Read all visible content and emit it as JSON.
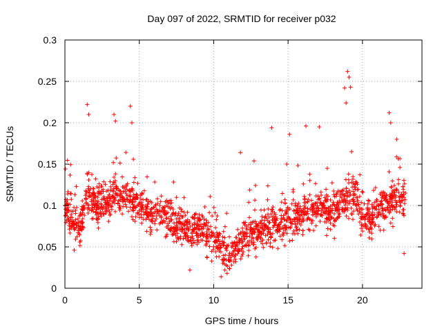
{
  "chart_data": {
    "type": "scatter",
    "title": "Day 097 of 2022, SRMTID for receiver p032",
    "xlabel": "GPS time / hours",
    "ylabel": "SRMTID / TECUs",
    "xlim": [
      0,
      24
    ],
    "ylim": [
      0,
      0.3
    ],
    "xticks": [
      0,
      5,
      10,
      15,
      20
    ],
    "xtick_labels": [
      "0",
      "5",
      "10",
      "15",
      "20"
    ],
    "yticks": [
      0,
      0.05,
      0.1,
      0.15,
      0.2,
      0.25,
      0.3
    ],
    "ytick_labels": [
      "0",
      "0.05",
      "0.1",
      "0.15",
      "0.2",
      "0.25",
      "0.3"
    ],
    "grid": true,
    "marker": "+",
    "color": "#ff0000",
    "x_range_of_data": [
      0,
      22.9
    ],
    "trend": [
      {
        "x": 0.0,
        "y": 0.1
      },
      {
        "x": 0.5,
        "y": 0.08
      },
      {
        "x": 1.0,
        "y": 0.07
      },
      {
        "x": 1.5,
        "y": 0.11
      },
      {
        "x": 2.0,
        "y": 0.105
      },
      {
        "x": 2.5,
        "y": 0.1
      },
      {
        "x": 3.0,
        "y": 0.105
      },
      {
        "x": 3.5,
        "y": 0.115
      },
      {
        "x": 4.0,
        "y": 0.11
      },
      {
        "x": 4.5,
        "y": 0.105
      },
      {
        "x": 5.0,
        "y": 0.1
      },
      {
        "x": 5.5,
        "y": 0.095
      },
      {
        "x": 6.0,
        "y": 0.09
      },
      {
        "x": 6.5,
        "y": 0.09
      },
      {
        "x": 7.0,
        "y": 0.085
      },
      {
        "x": 7.5,
        "y": 0.075
      },
      {
        "x": 8.0,
        "y": 0.075
      },
      {
        "x": 8.5,
        "y": 0.07
      },
      {
        "x": 9.0,
        "y": 0.075
      },
      {
        "x": 9.5,
        "y": 0.065
      },
      {
        "x": 10.0,
        "y": 0.06
      },
      {
        "x": 10.5,
        "y": 0.048
      },
      {
        "x": 11.0,
        "y": 0.042
      },
      {
        "x": 11.5,
        "y": 0.048
      },
      {
        "x": 12.0,
        "y": 0.06
      },
      {
        "x": 12.5,
        "y": 0.07
      },
      {
        "x": 13.0,
        "y": 0.065
      },
      {
        "x": 13.5,
        "y": 0.072
      },
      {
        "x": 14.0,
        "y": 0.075
      },
      {
        "x": 14.5,
        "y": 0.078
      },
      {
        "x": 15.0,
        "y": 0.08
      },
      {
        "x": 15.5,
        "y": 0.085
      },
      {
        "x": 16.0,
        "y": 0.09
      },
      {
        "x": 16.5,
        "y": 0.09
      },
      {
        "x": 17.0,
        "y": 0.095
      },
      {
        "x": 17.5,
        "y": 0.095
      },
      {
        "x": 18.0,
        "y": 0.09
      },
      {
        "x": 18.5,
        "y": 0.1
      },
      {
        "x": 19.0,
        "y": 0.115
      },
      {
        "x": 19.5,
        "y": 0.11
      },
      {
        "x": 20.0,
        "y": 0.085
      },
      {
        "x": 20.5,
        "y": 0.08
      },
      {
        "x": 21.0,
        "y": 0.095
      },
      {
        "x": 21.5,
        "y": 0.1
      },
      {
        "x": 22.0,
        "y": 0.105
      },
      {
        "x": 22.5,
        "y": 0.11
      },
      {
        "x": 22.9,
        "y": 0.105
      }
    ],
    "spread": 0.028,
    "n_points": 1800,
    "peaks": [
      {
        "x": 1.5,
        "y": 0.222
      },
      {
        "x": 1.6,
        "y": 0.21
      },
      {
        "x": 3.3,
        "y": 0.21
      },
      {
        "x": 3.4,
        "y": 0.202
      },
      {
        "x": 4.4,
        "y": 0.22
      },
      {
        "x": 4.5,
        "y": 0.2
      },
      {
        "x": 11.8,
        "y": 0.164
      },
      {
        "x": 13.9,
        "y": 0.194
      },
      {
        "x": 15.1,
        "y": 0.186
      },
      {
        "x": 16.2,
        "y": 0.196
      },
      {
        "x": 17.1,
        "y": 0.195
      },
      {
        "x": 18.8,
        "y": 0.242
      },
      {
        "x": 19.0,
        "y": 0.262
      },
      {
        "x": 19.1,
        "y": 0.255
      },
      {
        "x": 19.2,
        "y": 0.243
      },
      {
        "x": 18.9,
        "y": 0.224
      },
      {
        "x": 21.8,
        "y": 0.212
      },
      {
        "x": 21.9,
        "y": 0.2
      },
      {
        "x": 22.3,
        "y": 0.18
      },
      {
        "x": 10.5,
        "y": 0.014
      },
      {
        "x": 10.9,
        "y": 0.018
      },
      {
        "x": 8.4,
        "y": 0.022
      },
      {
        "x": 22.8,
        "y": 0.042
      }
    ]
  }
}
